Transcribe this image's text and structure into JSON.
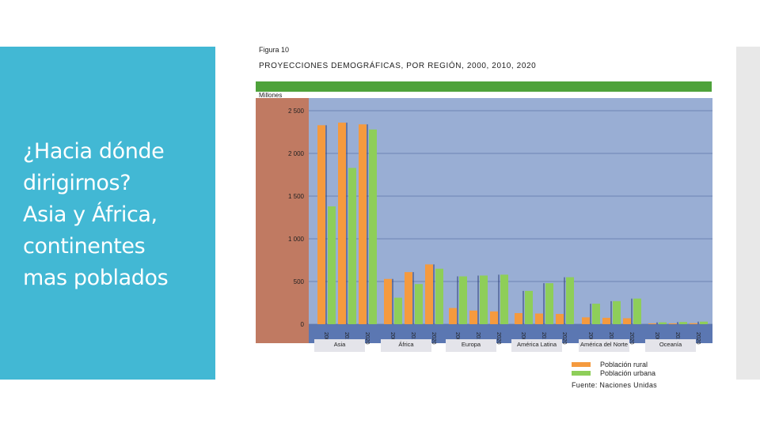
{
  "slide": {
    "title_lines": [
      "¿Hacia dónde",
      "dirigirnos?",
      "Asia y África,",
      "continentes",
      "mas poblados"
    ]
  },
  "colors": {
    "accent": "#42b8d4",
    "rural": "#f59a3e",
    "urban": "#8ece59",
    "plot_bg": "#99aed4",
    "axis_bg": "#c07a62",
    "band": "#4ea23a"
  },
  "figure": {
    "label": "Figura 10",
    "title": "PROYECCIONES DEMOGRÁFICAS, POR REGIÓN, 2000, 2010, 2020",
    "units": "Millones",
    "source": "Fuente: Naciones Unidas"
  },
  "legend": {
    "rural": "Población rural",
    "urban": "Población urbana"
  },
  "chart_data": {
    "type": "bar",
    "title": "PROYECCIONES DEMOGRÁFICAS, POR REGIÓN, 2000, 2010, 2020",
    "ylabel": "Millones",
    "ylim": [
      0,
      2500
    ],
    "yticks": [
      0,
      500,
      1000,
      1500,
      2000,
      2500
    ],
    "ytick_labels": [
      "0",
      "500",
      "1 000",
      "1 500",
      "2 000",
      "2 500"
    ],
    "years": [
      "2000",
      "2010",
      "2020"
    ],
    "grid": true,
    "series_names": [
      "Población rural",
      "Población urbana"
    ],
    "regions": [
      {
        "name": "Asia",
        "rural": [
          2330,
          2360,
          2340
        ],
        "urban": [
          1380,
          1830,
          2280
        ]
      },
      {
        "name": "África",
        "rural": [
          530,
          610,
          700
        ],
        "urban": [
          310,
          470,
          650
        ]
      },
      {
        "name": "Europa",
        "rural": [
          190,
          160,
          150
        ],
        "urban": [
          560,
          570,
          580
        ]
      },
      {
        "name": "América Latina",
        "rural": [
          130,
          125,
          120
        ],
        "urban": [
          390,
          480,
          550
        ]
      },
      {
        "name": "América del Norte",
        "rural": [
          80,
          75,
          70
        ],
        "urban": [
          240,
          270,
          300
        ]
      },
      {
        "name": "Oceanía",
        "rural": [
          10,
          10,
          12
        ],
        "urban": [
          22,
          26,
          30
        ]
      }
    ]
  }
}
